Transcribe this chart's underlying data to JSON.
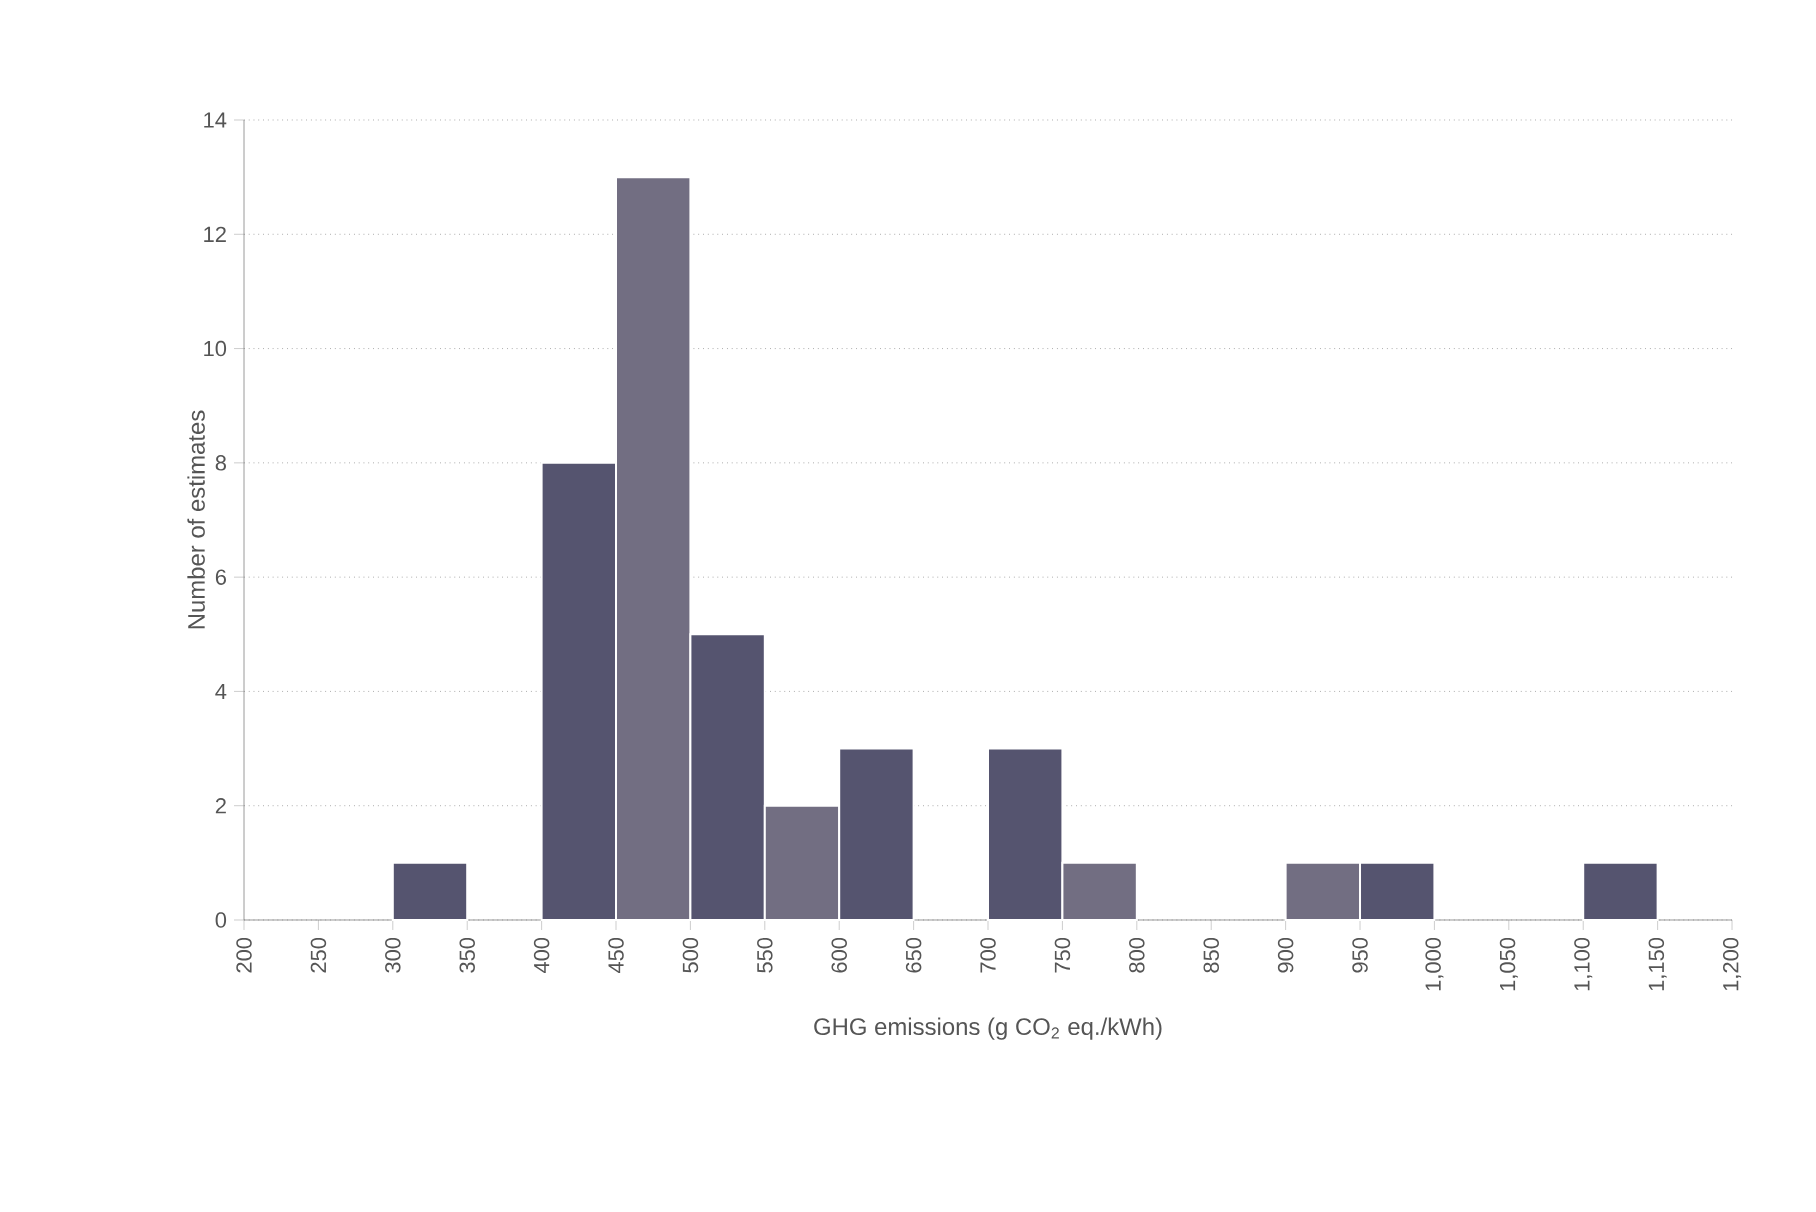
{
  "chart_data": {
    "type": "histogram",
    "xlabel": "GHG emissions (g CO$_{2}$ eq./kWh)",
    "ylabel": "Number of estimates",
    "bins": [
      200,
      250,
      300,
      350,
      400,
      450,
      500,
      550,
      600,
      650,
      700,
      750,
      800,
      850,
      900,
      950,
      1000,
      1050,
      1100,
      1150,
      1200
    ],
    "values": [
      0,
      0,
      1,
      0,
      8,
      13,
      5,
      2,
      3,
      0,
      3,
      1,
      0,
      0,
      1,
      1,
      0,
      0,
      1,
      0
    ],
    "colors": [
      "#55546f",
      "#55546f",
      "#55546f",
      "#55546f",
      "#55546f",
      "#726e82",
      "#55546f",
      "#726e82",
      "#55546f",
      "#55546f",
      "#55546f",
      "#726e82",
      "#55546f",
      "#55546f",
      "#726e82",
      "#55546f",
      "#55546f",
      "#55546f",
      "#55546f",
      "#55546f"
    ],
    "xlim": [
      200,
      1200
    ],
    "xticks": [
      200,
      250,
      300,
      350,
      400,
      450,
      500,
      550,
      600,
      650,
      700,
      750,
      800,
      850,
      900,
      950,
      {
        "value": 1000,
        "label": "1,000"
      },
      {
        "value": 1050,
        "label": "1,050"
      },
      {
        "value": 1100,
        "label": "1,100"
      },
      {
        "value": 1150,
        "label": "1,150"
      },
      {
        "value": 1200,
        "label": "1,200"
      }
    ],
    "ylim": [
      0,
      14
    ],
    "yticks": [
      0,
      2,
      4,
      6,
      8,
      10,
      12,
      14
    ],
    "grid": "y"
  }
}
